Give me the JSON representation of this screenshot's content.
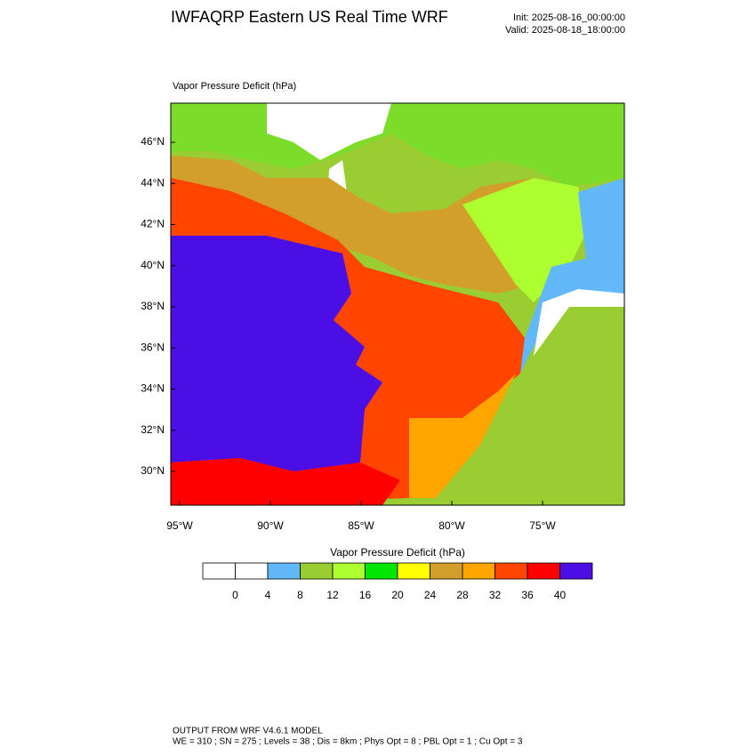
{
  "header": {
    "title": "IWFAQRP Eastern US Real Time WRF",
    "init": "Init: 2025-08-16_00:00:00",
    "valid": "Valid: 2025-08-18_18:00:00"
  },
  "map": {
    "label": "Vapor Pressure Deficit   (hPa)",
    "lat_labels": [
      "46°N",
      "44°N",
      "42°N",
      "40°N",
      "38°N",
      "36°N",
      "34°N",
      "32°N",
      "30°N"
    ],
    "lon_labels": [
      "95°W",
      "90°W",
      "85°W",
      "80°W",
      "75°W"
    ]
  },
  "colorbar": {
    "title": "Vapor Pressure Deficit   (hPa)",
    "colors": [
      "#ffffff",
      "#ffffff",
      "#63b8fa",
      "#9acd32",
      "#adff2f",
      "#00e600",
      "#ffff00",
      "#d2a02a",
      "#ffa500",
      "#ff4500",
      "#ff0000",
      "#4b0fe6"
    ],
    "ticks": [
      0,
      4,
      8,
      12,
      16,
      20,
      24,
      28,
      32,
      36,
      40
    ]
  },
  "footer": {
    "line1": "OUTPUT FROM WRF V4.6.1 MODEL",
    "line2": "WE = 310 ; SN = 275 ; Levels = 38 ; Dis = 8km ; Phys Opt = 8 ; PBL Opt = 1 ; Cu Opt = 3"
  }
}
